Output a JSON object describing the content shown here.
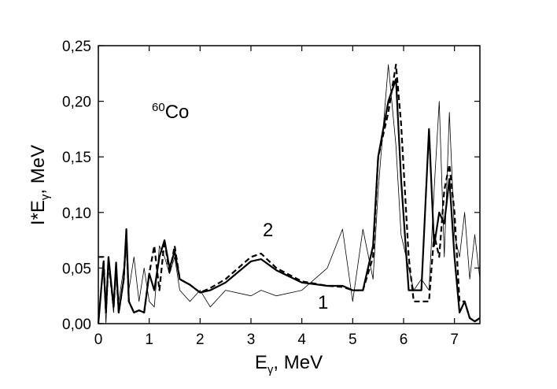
{
  "chart_data": {
    "type": "line",
    "annotation_isotope": {
      "mass": "60",
      "element": "Co"
    },
    "curve_labels": [
      "2",
      "1"
    ],
    "xlabel": {
      "main": "E",
      "sub": "γ",
      "rest": ", MeV"
    },
    "ylabel": {
      "main": "I*E",
      "sub": "γ",
      "rest": ", MeV"
    },
    "x": [
      0,
      0.1,
      0.15,
      0.2,
      0.3,
      0.35,
      0.4,
      0.5,
      0.55,
      0.6,
      0.7,
      0.8,
      0.9,
      1.0,
      1.1,
      1.2,
      1.3,
      1.4,
      1.5,
      1.6,
      1.8,
      2.0,
      2.2,
      2.5,
      3.0,
      3.2,
      3.5,
      4.0,
      4.5,
      4.8,
      5.0,
      5.2,
      5.4,
      5.5,
      5.7,
      5.85,
      5.95,
      6.1,
      6.2,
      6.35,
      6.5,
      6.6,
      6.7,
      6.8,
      6.9,
      7.0,
      7.1,
      7.2,
      7.3,
      7.4,
      7.5
    ],
    "series": [
      {
        "color": "#000000",
        "style": "thin",
        "values": [
          0,
          0.05,
          0.0,
          0.055,
          0.01,
          0.05,
          0.02,
          0.05,
          0.08,
          0.03,
          0.06,
          0.02,
          0.05,
          0.02,
          0.015,
          0.07,
          0.06,
          0.045,
          0.06,
          0.03,
          0.02,
          0.03,
          0.015,
          0.03,
          0.025,
          0.03,
          0.025,
          0.03,
          0.05,
          0.085,
          0.02,
          0.085,
          0.04,
          0.12,
          0.233,
          0.16,
          0.08,
          0.05,
          0.03,
          0.04,
          0.03,
          0.12,
          0.2,
          0.06,
          0.19,
          0.08,
          0.06,
          0.1,
          0.04,
          0.08,
          0.04
        ]
      },
      {
        "color": "#000000",
        "style": "thick",
        "values": [
          0,
          0.055,
          0.01,
          0.06,
          0.015,
          0.055,
          0.01,
          0.04,
          0.085,
          0.02,
          0.01,
          0.012,
          0.01,
          0.045,
          0.03,
          0.06,
          0.075,
          0.05,
          0.065,
          0.04,
          0.035,
          0.028,
          0.03,
          0.037,
          0.056,
          0.058,
          0.048,
          0.037,
          0.034,
          0.034,
          0.03,
          0.03,
          0.07,
          0.15,
          0.2,
          0.22,
          0.13,
          0.03,
          0.03,
          0.03,
          0.175,
          0.07,
          0.1,
          0.09,
          0.13,
          0.06,
          0.01,
          0.02,
          0.005,
          0.002,
          0.005
        ]
      },
      {
        "color": "#000000",
        "style": "dashed",
        "values": [
          0.06,
          0.06,
          0.01,
          0.055,
          0.015,
          0.05,
          0.01,
          0.04,
          0.08,
          0.02,
          0.01,
          0.012,
          0.01,
          0.045,
          0.07,
          0.03,
          0.075,
          0.045,
          0.07,
          0.04,
          0.035,
          0.028,
          0.032,
          0.04,
          0.06,
          0.063,
          0.05,
          0.038,
          0.034,
          0.033,
          0.03,
          0.03,
          0.06,
          0.15,
          0.19,
          0.233,
          0.18,
          0.06,
          0.02,
          0.02,
          0.02,
          0.08,
          0.06,
          0.12,
          0.143,
          0.1,
          0.02,
          0.02,
          0.005,
          0.002,
          0.005
        ]
      }
    ],
    "xlim": [
      0,
      7.5
    ],
    "xticks": [
      0,
      1,
      2,
      3,
      4,
      5,
      6,
      7
    ],
    "ylim": [
      0,
      0.25
    ],
    "yticks": [
      {
        "value": 0,
        "label": "0,00"
      },
      {
        "value": 0.05,
        "label": "0,05"
      },
      {
        "value": 0.1,
        "label": "0,10"
      },
      {
        "value": 0.15,
        "label": "0,15"
      },
      {
        "value": 0.2,
        "label": "0,20"
      },
      {
        "value": 0.25,
        "label": "0,25"
      }
    ]
  }
}
